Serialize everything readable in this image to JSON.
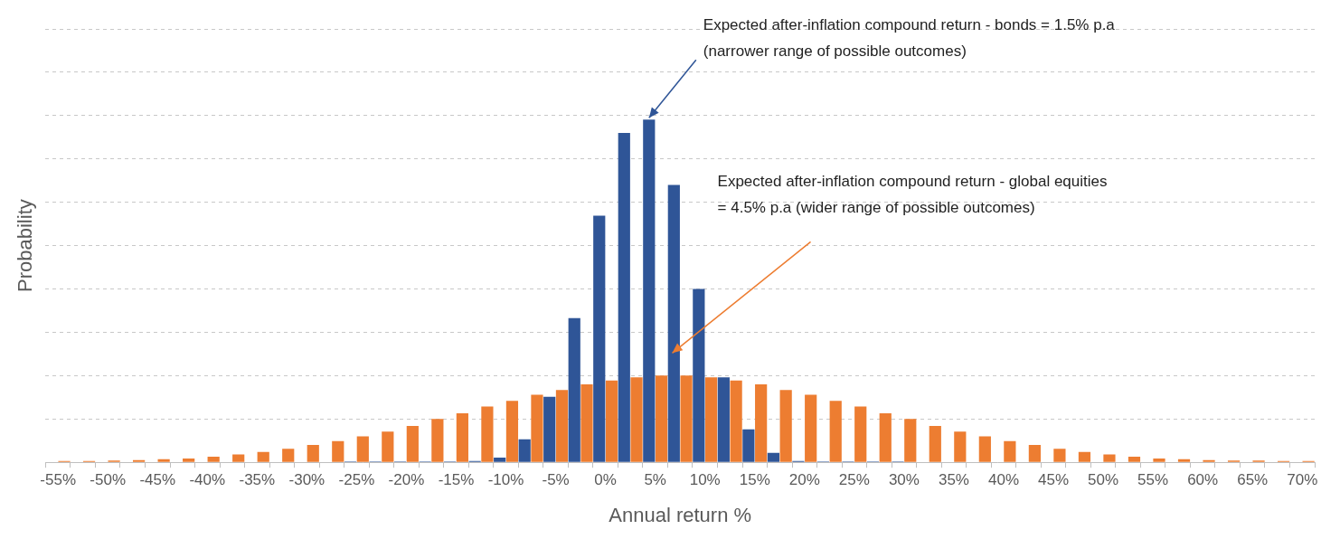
{
  "chart_data": {
    "type": "bar",
    "x_label": "Annual return %",
    "y_label": "Probability",
    "categories": [
      "-55%",
      null,
      "-50%",
      null,
      "-45%",
      null,
      "-40%",
      null,
      "-35%",
      null,
      "-30%",
      null,
      "-25%",
      null,
      "-20%",
      null,
      "-15%",
      null,
      "-10%",
      null,
      "-5%",
      null,
      "0%",
      null,
      "5%",
      null,
      "10%",
      null,
      "15%",
      null,
      "20%",
      null,
      "25%",
      null,
      "30%",
      null,
      "35%",
      null,
      "40%",
      null,
      "45%",
      null,
      "50%",
      null,
      "55%",
      null,
      "60%",
      null,
      "65%",
      null,
      "70%"
    ],
    "series": [
      {
        "color": "#2f5597",
        "values": [
          0,
          0,
          0,
          0,
          0,
          0,
          0,
          0,
          0,
          0,
          0,
          0,
          0.02,
          0.02,
          0.02,
          0.02,
          0.02,
          0.03,
          0.11,
          0.53,
          1.51,
          3.33,
          5.69,
          7.6,
          7.91,
          6.4,
          4.0,
          1.96,
          0.76,
          0.22,
          0.03,
          0.02,
          0.02,
          0.02,
          0.02,
          0,
          0,
          0,
          0,
          0,
          0,
          0,
          0,
          0,
          0,
          0,
          0,
          0,
          0,
          0,
          0
        ]
      },
      {
        "color": "#ed7d31",
        "values": [
          0.03,
          0.03,
          0.04,
          0.05,
          0.07,
          0.09,
          0.13,
          0.18,
          0.24,
          0.31,
          0.4,
          0.49,
          0.6,
          0.71,
          0.84,
          1.0,
          1.13,
          1.29,
          1.42,
          1.56,
          1.67,
          1.8,
          1.89,
          1.96,
          2.0,
          2.0,
          1.96,
          1.89,
          1.8,
          1.67,
          1.56,
          1.42,
          1.29,
          1.13,
          1.0,
          0.84,
          0.71,
          0.6,
          0.49,
          0.4,
          0.31,
          0.24,
          0.18,
          0.13,
          0.09,
          0.07,
          0.05,
          0.04,
          0.04,
          0.03,
          0.03
        ]
      }
    ],
    "annotations": [
      {
        "text": [
          "Expected after-inflation compound return - bonds = 1.5% p.a",
          "(narrower range of possible outcomes)"
        ]
      },
      {
        "text": [
          "Expected after-inflation compound return - global equities",
          "= 4.5% p.a (wider range of possible outcomes)"
        ]
      }
    ],
    "ylim": [
      0,
      10
    ],
    "yticks": [
      0,
      1,
      2,
      3,
      4,
      5,
      6,
      7,
      8,
      9,
      10
    ],
    "grid": true,
    "tick_labels": "x"
  }
}
